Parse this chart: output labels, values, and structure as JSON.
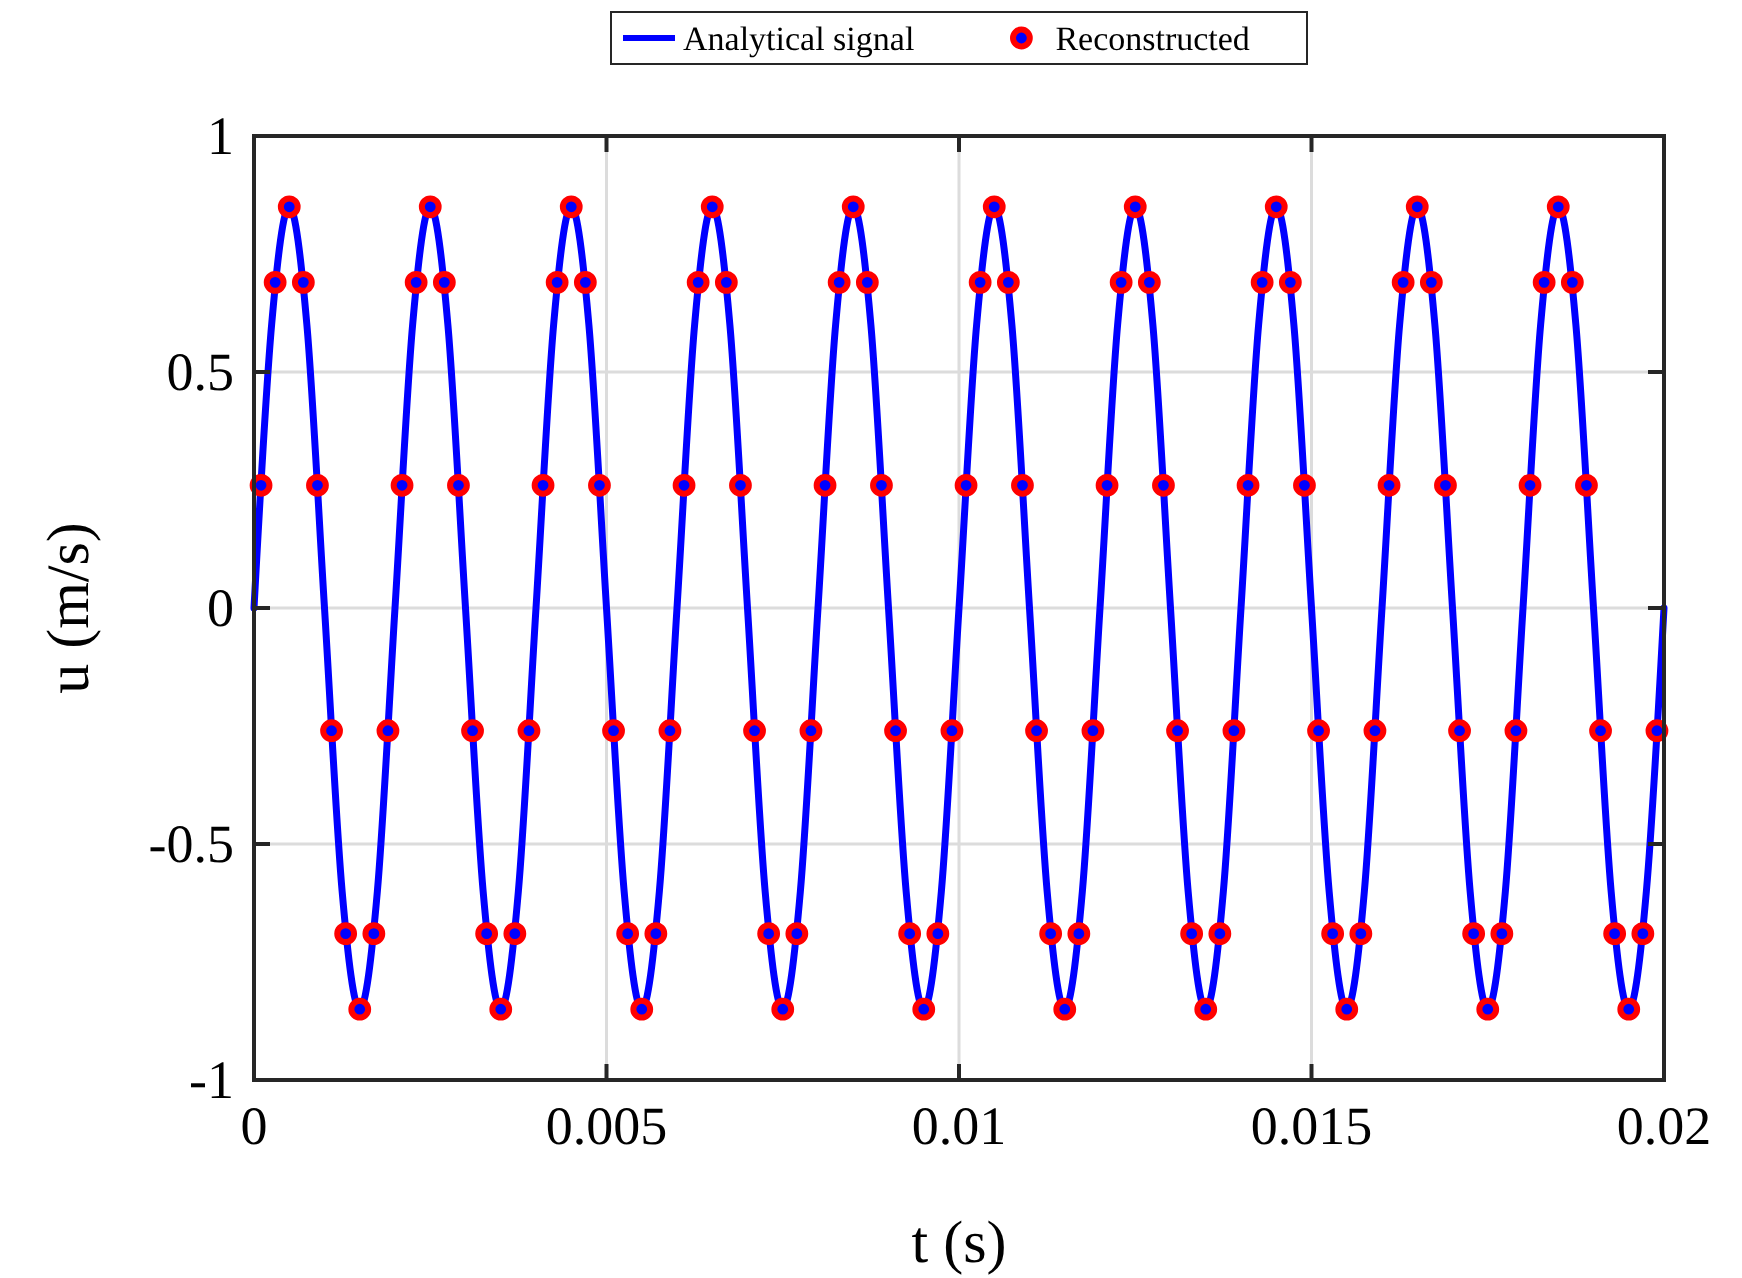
{
  "chart_data": {
    "type": "line",
    "xlabel": "t (s)",
    "ylabel": "u (m/s)",
    "xlim": [
      0,
      0.02
    ],
    "ylim": [
      -1,
      1
    ],
    "xticks": [
      0,
      0.005,
      0.01,
      0.015,
      0.02
    ],
    "yticks": [
      -1,
      -0.5,
      0,
      0.5,
      1
    ],
    "grid": true,
    "legend": "top",
    "series": [
      {
        "name": "Analytical signal",
        "color": "#0000ff",
        "marker": "none",
        "line_style": "solid",
        "x": [
          0,
          0.00025,
          0.0005,
          0.00075,
          0.001,
          0.00125,
          0.0015,
          0.00175,
          0.002,
          0.00225,
          0.0025,
          0.00275,
          0.003,
          0.00325,
          0.0035,
          0.00375,
          0.004,
          0.00425,
          0.0045,
          0.00475,
          0.005,
          0.00525,
          0.0055,
          0.00575,
          0.006,
          0.00625,
          0.0065,
          0.00675,
          0.007,
          0.00725,
          0.0075,
          0.00775,
          0.008,
          0.00825,
          0.0085,
          0.00875,
          0.009,
          0.00925,
          0.0095,
          0.00975,
          0.01,
          0.01025,
          0.0105,
          0.01075,
          0.011,
          0.01125,
          0.0115,
          0.01175,
          0.012,
          0.01225,
          0.0125,
          0.01275,
          0.013,
          0.01325,
          0.0135,
          0.01375,
          0.014,
          0.01425,
          0.0145,
          0.01475,
          0.015,
          0.01525,
          0.0155,
          0.01575,
          0.016,
          0.01625,
          0.0165,
          0.01675,
          0.017,
          0.01725,
          0.0175,
          0.01775,
          0.018,
          0.01825,
          0.0185,
          0.01875,
          0.019,
          0.01925,
          0.0195,
          0.01975,
          0.02
        ],
        "values": [
          0,
          0.6,
          0.85,
          0.6,
          0,
          -0.6,
          -0.85,
          -0.6,
          0,
          0.6,
          0.85,
          0.6,
          0,
          -0.6,
          -0.85,
          -0.6,
          0,
          0.6,
          0.85,
          0.6,
          0,
          -0.6,
          -0.85,
          -0.6,
          0,
          0.6,
          0.85,
          0.6,
          0,
          -0.6,
          -0.85,
          -0.6,
          0,
          0.6,
          0.85,
          0.6,
          0,
          -0.6,
          -0.85,
          -0.6,
          0,
          0.6,
          0.85,
          0.6,
          0,
          -0.6,
          -0.85,
          -0.6,
          0,
          0.6,
          0.85,
          0.6,
          0,
          -0.6,
          -0.85,
          -0.6,
          0,
          0.6,
          0.85,
          0.6,
          0,
          -0.6,
          -0.85,
          -0.6,
          0,
          0.6,
          0.85,
          0.6,
          0,
          -0.6,
          -0.85,
          -0.6,
          0,
          0.6,
          0.85,
          0.6,
          0,
          -0.6,
          -0.85,
          -0.6,
          0
        ]
      },
      {
        "name": "Reconstructed",
        "type": "scatter",
        "color": "#ff0000",
        "marker": "circle",
        "x": [
          0.0001,
          0.0003,
          0.0005,
          0.0007,
          0.0009,
          0.0011,
          0.0013,
          0.0015,
          0.0017,
          0.0019,
          0.0021,
          0.0023,
          0.0025,
          0.0027,
          0.0029,
          0.0031,
          0.0033,
          0.0035,
          0.0037,
          0.0039,
          0.0041,
          0.0043,
          0.0045,
          0.0047,
          0.0049,
          0.0051,
          0.0053,
          0.0055,
          0.0057,
          0.0059,
          0.0061,
          0.0063,
          0.0065,
          0.0067,
          0.0069,
          0.0071,
          0.0073,
          0.0075,
          0.0077,
          0.0079,
          0.0081,
          0.0083,
          0.0085,
          0.0087,
          0.0089,
          0.0091,
          0.0093,
          0.0095,
          0.0097,
          0.0099,
          0.0101,
          0.0103,
          0.0105,
          0.0107,
          0.0109,
          0.0111,
          0.0113,
          0.0115,
          0.0117,
          0.0119,
          0.0121,
          0.0123,
          0.0125,
          0.0127,
          0.0129,
          0.0131,
          0.0133,
          0.0135,
          0.0137,
          0.0139,
          0.0141,
          0.0143,
          0.0145,
          0.0147,
          0.0149,
          0.0151,
          0.0153,
          0.0155,
          0.0157,
          0.0159,
          0.0161,
          0.0163,
          0.0165,
          0.0167,
          0.0169,
          0.0171,
          0.0173,
          0.0175,
          0.0177,
          0.0179,
          0.0181,
          0.0183,
          0.0185,
          0.0187,
          0.0189,
          0.0191,
          0.0193,
          0.0195,
          0.0197,
          0.0199
        ],
        "values": [
          0.26,
          0.69,
          0.85,
          0.69,
          0.26,
          -0.26,
          -0.69,
          -0.85,
          -0.69,
          -0.26,
          0.26,
          0.69,
          0.85,
          0.69,
          0.26,
          -0.26,
          -0.69,
          -0.85,
          -0.69,
          -0.26,
          0.26,
          0.69,
          0.85,
          0.69,
          0.26,
          -0.26,
          -0.69,
          -0.85,
          -0.69,
          -0.26,
          0.26,
          0.69,
          0.85,
          0.69,
          0.26,
          -0.26,
          -0.69,
          -0.85,
          -0.69,
          -0.26,
          0.26,
          0.69,
          0.85,
          0.69,
          0.26,
          -0.26,
          -0.69,
          -0.85,
          -0.69,
          -0.26,
          0.26,
          0.69,
          0.85,
          0.69,
          0.26,
          -0.26,
          -0.69,
          -0.85,
          -0.69,
          -0.26,
          0.26,
          0.69,
          0.85,
          0.69,
          0.26,
          -0.26,
          -0.69,
          -0.85,
          -0.69,
          -0.26,
          0.26,
          0.69,
          0.85,
          0.69,
          0.26,
          -0.26,
          -0.69,
          -0.85,
          -0.69,
          -0.26,
          0.26,
          0.69,
          0.85,
          0.69,
          0.26,
          -0.26,
          -0.69,
          -0.85,
          -0.69,
          -0.26,
          0.26,
          0.69,
          0.85,
          0.69,
          0.26,
          -0.26,
          -0.69,
          -0.85,
          -0.69,
          -0.26
        ]
      }
    ]
  }
}
